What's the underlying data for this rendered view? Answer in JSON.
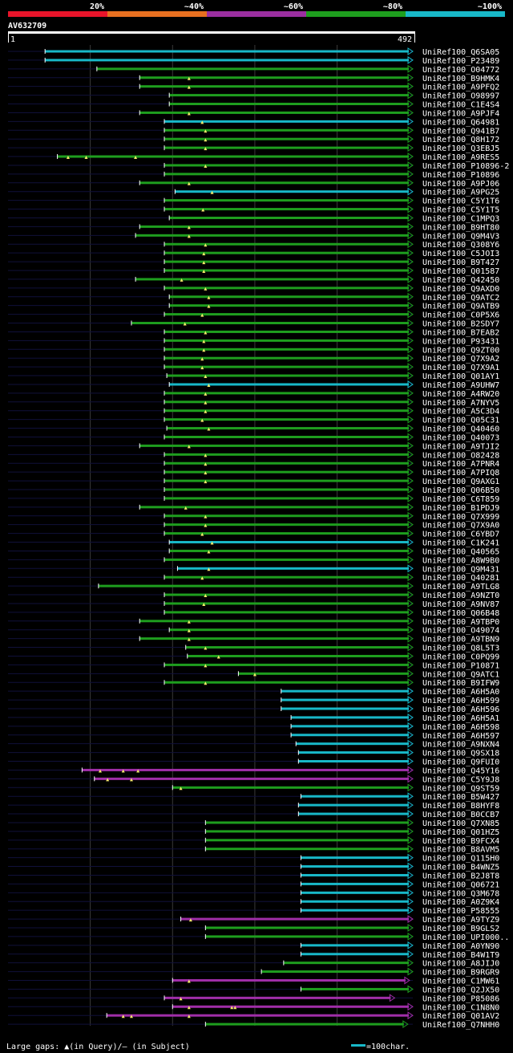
{
  "chart_data": {
    "type": "alignment-overview",
    "title": "AV632709",
    "scale_start": "1",
    "scale_end": "492",
    "query_length": 492,
    "identity_legend": [
      {
        "label": "20%",
        "color": "#e8142a"
      },
      {
        "label": "~40%",
        "color": "#e87020"
      },
      {
        "label": "~60%",
        "color": "#9b2fa0"
      },
      {
        "label": "~80%",
        "color": "#1e9e1e"
      },
      {
        "label": "~100%",
        "color": "#18b8c8"
      }
    ],
    "grid_positions": [
      100,
      200,
      300,
      400
    ],
    "footer_left": "Large gaps: ▲(in Query)/– (in Subject)",
    "footer_right": "=100char.",
    "hits": [
      {
        "id": "UniRef100_Q6SA05",
        "s": 45,
        "e": 492,
        "c": "cyan",
        "l": 45
      },
      {
        "id": "UniRef100_P23489",
        "s": 45,
        "e": 492,
        "c": "cyan",
        "l": 45
      },
      {
        "id": "UniRef100_O04772",
        "s": 108,
        "e": 492,
        "c": "green",
        "l": 108
      },
      {
        "id": "UniRef100_B9HMK4",
        "s": 160,
        "e": 492,
        "c": "green",
        "l": 160,
        "tri": [
          220
        ]
      },
      {
        "id": "UniRef100_A9PFQ2",
        "s": 160,
        "e": 492,
        "c": "green",
        "l": 160,
        "tri": [
          220
        ]
      },
      {
        "id": "UniRef100_O98997",
        "s": 196,
        "e": 492,
        "c": "green",
        "l": 196
      },
      {
        "id": "UniRef100_C1E4S4",
        "s": 196,
        "e": 492,
        "c": "green",
        "l": 196
      },
      {
        "id": "UniRef100_A9PJF4",
        "s": 160,
        "e": 492,
        "c": "green",
        "l": 160,
        "tri": [
          220
        ]
      },
      {
        "id": "UniRef100_Q64981",
        "s": 190,
        "e": 492,
        "c": "cyan",
        "l": 190,
        "tri": [
          236
        ]
      },
      {
        "id": "UniRef100_Q941B7",
        "s": 190,
        "e": 492,
        "c": "green",
        "l": 190,
        "tri": [
          240
        ]
      },
      {
        "id": "UniRef100_Q8H172",
        "s": 190,
        "e": 492,
        "c": "green",
        "l": 190,
        "tri": [
          240
        ]
      },
      {
        "id": "UniRef100_Q3EBJ5",
        "s": 190,
        "e": 492,
        "c": "green",
        "l": 190,
        "tri": [
          240
        ]
      },
      {
        "id": "UniRef100_A9RES5",
        "s": 60,
        "e": 492,
        "c": "green",
        "l": 60,
        "tri": [
          73,
          95,
          155
        ]
      },
      {
        "id": "UniRef100_P10896-2",
        "s": 190,
        "e": 492,
        "c": "green",
        "l": 190,
        "tri": [
          240
        ]
      },
      {
        "id": "UniRef100_P10896",
        "s": 190,
        "e": 492,
        "c": "green",
        "l": 190
      },
      {
        "id": "UniRef100_A9PJ06",
        "s": 160,
        "e": 492,
        "c": "green",
        "l": 160,
        "tri": [
          220
        ]
      },
      {
        "id": "UniRef100_A9PG25",
        "s": 203,
        "e": 492,
        "c": "cyan",
        "l": 203,
        "tri": [
          248
        ]
      },
      {
        "id": "UniRef100_C5Y1T6",
        "s": 190,
        "e": 492,
        "c": "green",
        "l": 190
      },
      {
        "id": "UniRef100_C5Y1T5",
        "s": 190,
        "e": 492,
        "c": "green",
        "l": 190,
        "tri": [
          237
        ]
      },
      {
        "id": "UniRef100_C1MPQ3",
        "s": 196,
        "e": 492,
        "c": "green",
        "l": 196
      },
      {
        "id": "UniRef100_B9HT80",
        "s": 160,
        "e": 492,
        "c": "green",
        "l": 160,
        "tri": [
          220
        ]
      },
      {
        "id": "UniRef100_Q9M4V3",
        "s": 155,
        "e": 492,
        "c": "green",
        "l": 155,
        "tri": [
          220
        ]
      },
      {
        "id": "UniRef100_Q308Y6",
        "s": 190,
        "e": 492,
        "c": "green",
        "l": 190,
        "tri": [
          240
        ]
      },
      {
        "id": "UniRef100_C5JOI3",
        "s": 190,
        "e": 492,
        "c": "green",
        "l": 190,
        "tri": [
          238
        ]
      },
      {
        "id": "UniRef100_B9T427",
        "s": 190,
        "e": 492,
        "c": "green",
        "l": 190,
        "tri": [
          238
        ]
      },
      {
        "id": "UniRef100_Q01587",
        "s": 190,
        "e": 492,
        "c": "green",
        "l": 190,
        "tri": [
          238
        ]
      },
      {
        "id": "UniRef100_Q42450",
        "s": 155,
        "e": 492,
        "c": "green",
        "l": 155,
        "tri": [
          211
        ]
      },
      {
        "id": "UniRef100_Q9AXD0",
        "s": 190,
        "e": 492,
        "c": "green",
        "l": 190,
        "tri": [
          240
        ]
      },
      {
        "id": "UniRef100_Q9ATC2",
        "s": 196,
        "e": 492,
        "c": "green",
        "l": 196,
        "tri": [
          244
        ]
      },
      {
        "id": "UniRef100_Q9ATB9",
        "s": 196,
        "e": 492,
        "c": "green",
        "l": 196,
        "tri": [
          244
        ]
      },
      {
        "id": "UniRef100_C0P5X6",
        "s": 190,
        "e": 492,
        "c": "green",
        "l": 190,
        "tri": [
          236
        ]
      },
      {
        "id": "UniRef100_B2SDY7",
        "s": 150,
        "e": 492,
        "c": "green",
        "l": 150,
        "tri": [
          215
        ]
      },
      {
        "id": "UniRef100_B7EAB2",
        "s": 190,
        "e": 492,
        "c": "green",
        "l": 190,
        "tri": [
          240
        ]
      },
      {
        "id": "UniRef100_P93431",
        "s": 190,
        "e": 492,
        "c": "green",
        "l": 190,
        "tri": [
          238
        ]
      },
      {
        "id": "UniRef100_Q9ZT00",
        "s": 190,
        "e": 492,
        "c": "green",
        "l": 190,
        "tri": [
          238
        ]
      },
      {
        "id": "UniRef100_Q7X9A2",
        "s": 190,
        "e": 492,
        "c": "green",
        "l": 190,
        "tri": [
          236
        ]
      },
      {
        "id": "UniRef100_Q7X9A1",
        "s": 190,
        "e": 492,
        "c": "green",
        "l": 190,
        "tri": [
          236
        ]
      },
      {
        "id": "UniRef100_Q01AY1",
        "s": 193,
        "e": 492,
        "c": "green",
        "l": 193,
        "tri": [
          240
        ]
      },
      {
        "id": "UniRef100_A9UHW7",
        "s": 196,
        "e": 492,
        "c": "cyan",
        "l": 196,
        "tri": [
          244
        ]
      },
      {
        "id": "UniRef100_A4RW20",
        "s": 190,
        "e": 492,
        "c": "green",
        "l": 190,
        "tri": [
          240
        ]
      },
      {
        "id": "UniRef100_A7NYV5",
        "s": 190,
        "e": 492,
        "c": "green",
        "l": 190,
        "tri": [
          240
        ]
      },
      {
        "id": "UniRef100_A5C3D4",
        "s": 190,
        "e": 492,
        "c": "green",
        "l": 190,
        "tri": [
          240
        ]
      },
      {
        "id": "UniRef100_Q05C31",
        "s": 190,
        "e": 492,
        "c": "green",
        "l": 190,
        "tri": [
          236
        ]
      },
      {
        "id": "UniRef100_Q40460",
        "s": 193,
        "e": 492,
        "c": "green",
        "l": 193,
        "tri": [
          244
        ]
      },
      {
        "id": "UniRef100_Q40073",
        "s": 190,
        "e": 492,
        "c": "green",
        "l": 190
      },
      {
        "id": "UniRef100_A9TJI2",
        "s": 160,
        "e": 492,
        "c": "green",
        "l": 160,
        "tri": [
          220
        ]
      },
      {
        "id": "UniRef100_O82428",
        "s": 190,
        "e": 492,
        "c": "green",
        "l": 190,
        "tri": [
          240
        ]
      },
      {
        "id": "UniRef100_A7PNR4",
        "s": 190,
        "e": 492,
        "c": "green",
        "l": 190,
        "tri": [
          240
        ]
      },
      {
        "id": "UniRef100_A7PIQ8",
        "s": 190,
        "e": 492,
        "c": "green",
        "l": 190,
        "tri": [
          240
        ]
      },
      {
        "id": "UniRef100_Q9AXG1",
        "s": 190,
        "e": 492,
        "c": "green",
        "l": 190,
        "tri": [
          240
        ]
      },
      {
        "id": "UniRef100_Q06B50",
        "s": 190,
        "e": 492,
        "c": "green",
        "l": 190
      },
      {
        "id": "UniRef100_C6T859",
        "s": 190,
        "e": 492,
        "c": "green",
        "l": 190
      },
      {
        "id": "UniRef100_B1PDJ9",
        "s": 160,
        "e": 492,
        "c": "green",
        "l": 160,
        "tri": [
          216
        ]
      },
      {
        "id": "UniRef100_Q7X999",
        "s": 190,
        "e": 492,
        "c": "green",
        "l": 190,
        "tri": [
          240
        ]
      },
      {
        "id": "UniRef100_Q7X9A0",
        "s": 190,
        "e": 492,
        "c": "green",
        "l": 190,
        "tri": [
          240
        ]
      },
      {
        "id": "UniRef100_C6YBD7",
        "s": 190,
        "e": 492,
        "c": "green",
        "l": 190,
        "tri": [
          236
        ]
      },
      {
        "id": "UniRef100_C1K241",
        "s": 196,
        "e": 492,
        "c": "cyan",
        "l": 196,
        "tri": [
          248
        ]
      },
      {
        "id": "UniRef100_Q40565",
        "s": 196,
        "e": 492,
        "c": "green",
        "l": 196,
        "tri": [
          244
        ]
      },
      {
        "id": "UniRef100_A8W9B0",
        "s": 190,
        "e": 492,
        "c": "green",
        "l": 190
      },
      {
        "id": "UniRef100_Q9M431",
        "s": 206,
        "e": 492,
        "c": "cyan",
        "l": 206,
        "tri": [
          244
        ]
      },
      {
        "id": "UniRef100_Q40281",
        "s": 190,
        "e": 492,
        "c": "green",
        "l": 190,
        "tri": [
          236
        ]
      },
      {
        "id": "UniRef100_A9TLG8",
        "s": 110,
        "e": 492,
        "c": "green",
        "l": 110
      },
      {
        "id": "UniRef100_A9NZT0",
        "s": 190,
        "e": 492,
        "c": "green",
        "l": 190,
        "tri": [
          240
        ]
      },
      {
        "id": "UniRef100_A9NV87",
        "s": 190,
        "e": 492,
        "c": "green",
        "l": 190,
        "tri": [
          238
        ]
      },
      {
        "id": "UniRef100_Q06B48",
        "s": 190,
        "e": 492,
        "c": "green",
        "l": 190
      },
      {
        "id": "UniRef100_A9TBP0",
        "s": 160,
        "e": 492,
        "c": "green",
        "l": 160,
        "tri": [
          220
        ]
      },
      {
        "id": "UniRef100_O49074",
        "s": 196,
        "e": 492,
        "c": "green",
        "l": 196,
        "tri": [
          220
        ]
      },
      {
        "id": "UniRef100_A9TBN9",
        "s": 160,
        "e": 492,
        "c": "green",
        "l": 160,
        "tri": [
          220
        ]
      },
      {
        "id": "UniRef100_Q8L5T3",
        "s": 216,
        "e": 492,
        "c": "green",
        "l": 216,
        "tri": [
          240
        ]
      },
      {
        "id": "UniRef100_C0PQ99",
        "s": 218,
        "e": 492,
        "c": "green",
        "l": 218,
        "tri": [
          256
        ]
      },
      {
        "id": "UniRef100_P10871",
        "s": 190,
        "e": 492,
        "c": "green",
        "l": 190,
        "tri": [
          240
        ]
      },
      {
        "id": "UniRef100_Q9ATC1",
        "s": 280,
        "e": 492,
        "c": "green",
        "l": 280,
        "tri": [
          300
        ]
      },
      {
        "id": "UniRef100_B9IFW9",
        "s": 190,
        "e": 492,
        "c": "green",
        "l": 190,
        "tri": [
          240
        ]
      },
      {
        "id": "UniRef100_A6H5A0",
        "s": 332,
        "e": 492,
        "c": "cyan",
        "l": 332
      },
      {
        "id": "UniRef100_A6H599",
        "s": 332,
        "e": 492,
        "c": "cyan",
        "l": 332
      },
      {
        "id": "UniRef100_A6H596",
        "s": 332,
        "e": 492,
        "c": "cyan",
        "l": 332
      },
      {
        "id": "UniRef100_A6H5A1",
        "s": 344,
        "e": 492,
        "c": "cyan",
        "l": 344
      },
      {
        "id": "UniRef100_A6H598",
        "s": 344,
        "e": 492,
        "c": "cyan",
        "l": 344
      },
      {
        "id": "UniRef100_A6H597",
        "s": 344,
        "e": 492,
        "c": "cyan",
        "l": 344
      },
      {
        "id": "UniRef100_A9NXN4",
        "s": 350,
        "e": 492,
        "c": "cyan",
        "l": 350
      },
      {
        "id": "UniRef100_Q9SX18",
        "s": 353,
        "e": 492,
        "c": "cyan",
        "l": 353
      },
      {
        "id": "UniRef100_Q9FUI0",
        "s": 353,
        "e": 492,
        "c": "cyan",
        "l": 353
      },
      {
        "id": "UniRef100_Q45Y16",
        "s": 90,
        "e": 492,
        "c": "magenta",
        "l": 90,
        "tri": [
          112,
          140,
          158
        ]
      },
      {
        "id": "UniRef100_C5Y9J8",
        "s": 105,
        "e": 492,
        "c": "magenta",
        "l": 105,
        "tri": [
          121,
          150
        ]
      },
      {
        "id": "UniRef100_Q9ST59",
        "s": 200,
        "e": 492,
        "c": "green",
        "l": 200,
        "tri": [
          210
        ]
      },
      {
        "id": "UniRef100_B5W427",
        "s": 356,
        "e": 492,
        "c": "cyan",
        "l": 356
      },
      {
        "id": "UniRef100_B8HYF8",
        "s": 353,
        "e": 492,
        "c": "cyan",
        "l": 353
      },
      {
        "id": "UniRef100_B0CCB7",
        "s": 353,
        "e": 492,
        "c": "cyan",
        "l": 353
      },
      {
        "id": "UniRef100_Q7XN85",
        "s": 240,
        "e": 492,
        "c": "green",
        "l": 240
      },
      {
        "id": "UniRef100_Q01HZ5",
        "s": 240,
        "e": 492,
        "c": "green",
        "l": 240
      },
      {
        "id": "UniRef100_B9FCX4",
        "s": 240,
        "e": 492,
        "c": "green",
        "l": 240
      },
      {
        "id": "UniRef100_B8AVM5",
        "s": 240,
        "e": 492,
        "c": "green",
        "l": 240
      },
      {
        "id": "UniRef100_Q115H0",
        "s": 356,
        "e": 492,
        "c": "cyan",
        "l": 356
      },
      {
        "id": "UniRef100_B4WNZ5",
        "s": 356,
        "e": 492,
        "c": "cyan",
        "l": 356
      },
      {
        "id": "UniRef100_B2J8T8",
        "s": 356,
        "e": 492,
        "c": "cyan",
        "l": 356
      },
      {
        "id": "UniRef100_Q06721",
        "s": 356,
        "e": 492,
        "c": "cyan",
        "l": 356
      },
      {
        "id": "UniRef100_Q3M678",
        "s": 356,
        "e": 492,
        "c": "cyan",
        "l": 356
      },
      {
        "id": "UniRef100_A0Z9K4",
        "s": 356,
        "e": 492,
        "c": "cyan",
        "l": 356
      },
      {
        "id": "UniRef100_P58555",
        "s": 356,
        "e": 492,
        "c": "cyan",
        "l": 356
      },
      {
        "id": "UniRef100_A9TYZ9",
        "s": 210,
        "e": 492,
        "c": "magenta",
        "l": 210,
        "tri": [
          222
        ]
      },
      {
        "id": "UniRef100_B9GLS2",
        "s": 240,
        "e": 492,
        "c": "green",
        "l": 240
      },
      {
        "id": "UniRef100_UPI000..",
        "s": 240,
        "e": 492,
        "c": "green",
        "l": 240
      },
      {
        "id": "UniRef100_A0YN90",
        "s": 356,
        "e": 492,
        "c": "cyan",
        "l": 356
      },
      {
        "id": "UniRef100_B4W1T9",
        "s": 356,
        "e": 492,
        "c": "cyan",
        "l": 356
      },
      {
        "id": "UniRef100_A8JIJ0",
        "s": 335,
        "e": 492,
        "c": "green",
        "l": 335
      },
      {
        "id": "UniRef100_B9RGR9",
        "s": 308,
        "e": 492,
        "c": "green",
        "l": 308
      },
      {
        "id": "UniRef100_C1MW61",
        "s": 200,
        "e": 488,
        "c": "magenta",
        "l": 200,
        "tri": [
          220
        ]
      },
      {
        "id": "UniRef100_Q2JX50",
        "s": 356,
        "e": 492,
        "c": "green",
        "l": 356
      },
      {
        "id": "UniRef100_P85086",
        "s": 190,
        "e": 470,
        "c": "magenta",
        "l": 190,
        "tri": [
          210
        ]
      },
      {
        "id": "UniRef100_C1N8N0",
        "s": 200,
        "e": 492,
        "c": "magenta",
        "l": 200,
        "tri": [
          220,
          272,
          276
        ]
      },
      {
        "id": "UniRef100_Q01AV2",
        "s": 120,
        "e": 492,
        "c": "magenta",
        "l": 120,
        "tri": [
          140,
          150,
          220
        ]
      },
      {
        "id": "UniRef100_Q7NHH0",
        "s": 240,
        "e": 486,
        "c": "green",
        "l": 240
      }
    ]
  }
}
